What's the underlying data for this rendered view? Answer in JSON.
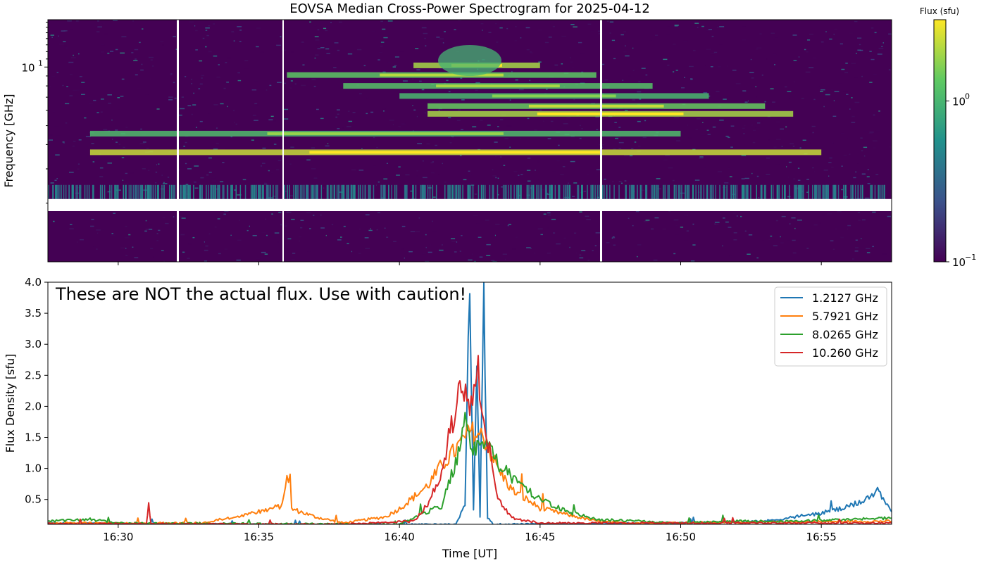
{
  "chart_data": [
    {
      "type": "heatmap",
      "title": "EOVSA Median Cross-Power Spectrogram for 2025-04-12",
      "ylabel": "Frequency [GHz]",
      "yscale": "log",
      "ylim": [
        1.0,
        17.5
      ],
      "y_tick_labels": [
        {
          "value": 10,
          "label": "10",
          "exp": "1"
        }
      ],
      "xlim": [
        "16:27:30",
        "16:57:30"
      ],
      "x_tick_labels": [],
      "masked_band_ghz": [
        1.82,
        2.1
      ],
      "colorbar": {
        "label": "Flux (sfu)",
        "scale": "log",
        "range": [
          0.1,
          3.2
        ],
        "colormap": "viridis",
        "tick_labels": [
          {
            "value": 1,
            "label": "10",
            "exp": "0"
          },
          {
            "value": 0.1,
            "label": "10",
            "exp": "−1"
          }
        ]
      },
      "bright_bands": [
        {
          "freq_ghz": 10.2,
          "start": "16:40:30",
          "end": "16:45:00",
          "level": 2.0
        },
        {
          "freq_ghz": 9.1,
          "start": "16:36:00",
          "end": "16:47:00",
          "level": 1.3
        },
        {
          "freq_ghz": 8.0,
          "start": "16:38:00",
          "end": "16:49:00",
          "level": 1.2
        },
        {
          "freq_ghz": 7.1,
          "start": "16:40:00",
          "end": "16:51:00",
          "level": 1.0
        },
        {
          "freq_ghz": 6.3,
          "start": "16:41:00",
          "end": "16:53:00",
          "level": 1.4
        },
        {
          "freq_ghz": 5.75,
          "start": "16:41:00",
          "end": "16:54:00",
          "level": 2.0
        },
        {
          "freq_ghz": 4.55,
          "start": "16:29:00",
          "end": "16:50:00",
          "level": 1.1
        },
        {
          "freq_ghz": 3.65,
          "start": "16:29:00",
          "end": "16:55:00",
          "level": 2.4
        }
      ]
    },
    {
      "type": "line",
      "xlabel": "Time [UT]",
      "ylabel": "Flux Density [sfu]",
      "ylim": [
        0.1,
        4.0
      ],
      "xlim": [
        "16:27:30",
        "16:57:30"
      ],
      "x_tick_labels": [
        "16:30",
        "16:35",
        "16:40",
        "16:45",
        "16:50",
        "16:55"
      ],
      "y_tick_labels": [
        "0.5",
        "1.0",
        "1.5",
        "2.0",
        "2.5",
        "3.0",
        "3.5",
        "4.0"
      ],
      "annotation": "These are NOT the actual flux. Use with caution!",
      "legend_position": "top-right",
      "series": [
        {
          "name": "1.2127 GHz",
          "color": "#1f77b4",
          "points": [
            [
              "16:27:30",
              0.12
            ],
            [
              "16:30:00",
              0.11
            ],
            [
              "16:35:00",
              0.1
            ],
            [
              "16:40:00",
              0.1
            ],
            [
              "16:42:00",
              0.1
            ],
            [
              "16:42:20",
              0.4
            ],
            [
              "16:42:30",
              4.0
            ],
            [
              "16:42:38",
              0.3
            ],
            [
              "16:42:45",
              3.0
            ],
            [
              "16:42:52",
              0.2
            ],
            [
              "16:43:00",
              4.0
            ],
            [
              "16:43:08",
              0.2
            ],
            [
              "16:43:20",
              0.1
            ],
            [
              "16:50:00",
              0.12
            ],
            [
              "16:53:00",
              0.15
            ],
            [
              "16:55:00",
              0.28
            ],
            [
              "16:56:00",
              0.38
            ],
            [
              "16:57:00",
              0.62
            ],
            [
              "16:57:30",
              0.3
            ]
          ]
        },
        {
          "name": "5.7921 GHz",
          "color": "#ff7f0e",
          "points": [
            [
              "16:27:30",
              0.12
            ],
            [
              "16:33:00",
              0.12
            ],
            [
              "16:35:00",
              0.3
            ],
            [
              "16:35:50",
              0.4
            ],
            [
              "16:36:00",
              0.93
            ],
            [
              "16:36:10",
              0.35
            ],
            [
              "16:37:00",
              0.22
            ],
            [
              "16:38:00",
              0.12
            ],
            [
              "16:39:30",
              0.22
            ],
            [
              "16:40:00",
              0.35
            ],
            [
              "16:41:00",
              0.72
            ],
            [
              "16:41:30",
              1.05
            ],
            [
              "16:42:00",
              1.3
            ],
            [
              "16:42:30",
              1.6
            ],
            [
              "16:43:00",
              1.5
            ],
            [
              "16:43:30",
              1.0
            ],
            [
              "16:44:00",
              0.65
            ],
            [
              "16:45:00",
              0.36
            ],
            [
              "16:46:00",
              0.25
            ],
            [
              "16:47:00",
              0.15
            ],
            [
              "16:48:00",
              0.12
            ],
            [
              "16:57:30",
              0.15
            ]
          ]
        },
        {
          "name": "8.0265 GHz",
          "color": "#2ca02c",
          "points": [
            [
              "16:27:30",
              0.15
            ],
            [
              "16:29:00",
              0.18
            ],
            [
              "16:30:00",
              0.12
            ],
            [
              "16:40:00",
              0.1
            ],
            [
              "16:41:30",
              0.4
            ],
            [
              "16:42:00",
              1.1
            ],
            [
              "16:42:20",
              1.7
            ],
            [
              "16:42:40",
              1.3
            ],
            [
              "16:43:00",
              1.4
            ],
            [
              "16:43:30",
              1.1
            ],
            [
              "16:44:00",
              0.85
            ],
            [
              "16:45:00",
              0.5
            ],
            [
              "16:46:00",
              0.3
            ],
            [
              "16:47:00",
              0.18
            ],
            [
              "16:50:00",
              0.12
            ],
            [
              "16:52:00",
              0.15
            ],
            [
              "16:54:00",
              0.15
            ],
            [
              "16:57:30",
              0.2
            ]
          ]
        },
        {
          "name": "10.260 GHz",
          "color": "#d62728",
          "points": [
            [
              "16:27:30",
              0.11
            ],
            [
              "16:31:00",
              0.11
            ],
            [
              "16:31:05",
              0.42
            ],
            [
              "16:31:10",
              0.11
            ],
            [
              "16:35:00",
              0.1
            ],
            [
              "16:38:00",
              0.1
            ],
            [
              "16:40:30",
              0.15
            ],
            [
              "16:41:00",
              0.42
            ],
            [
              "16:41:30",
              0.95
            ],
            [
              "16:42:00",
              2.0
            ],
            [
              "16:42:15",
              2.3
            ],
            [
              "16:42:30",
              1.85
            ],
            [
              "16:42:45",
              2.8
            ],
            [
              "16:43:00",
              1.75
            ],
            [
              "16:43:15",
              1.2
            ],
            [
              "16:43:30",
              0.5
            ],
            [
              "16:44:00",
              0.2
            ],
            [
              "16:45:00",
              0.12
            ],
            [
              "16:57:30",
              0.12
            ]
          ]
        }
      ]
    }
  ]
}
